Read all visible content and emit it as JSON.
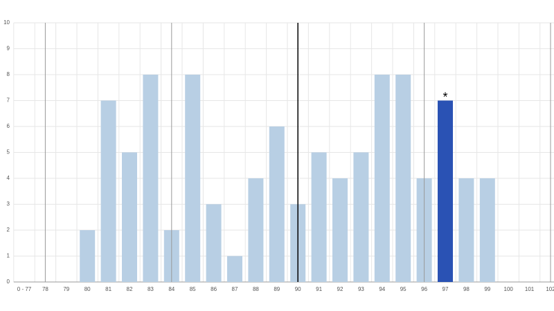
{
  "chart_data": {
    "type": "bar",
    "categories": [
      "0 - 77",
      "78",
      "79",
      "80",
      "81",
      "82",
      "83",
      "84",
      "85",
      "86",
      "87",
      "88",
      "89",
      "90",
      "91",
      "92",
      "93",
      "94",
      "95",
      "96",
      "97",
      "98",
      "99",
      "100",
      "101",
      "102"
    ],
    "values": [
      0,
      0,
      0,
      2,
      7,
      5,
      8,
      2,
      8,
      3,
      1,
      4,
      6,
      3,
      5,
      4,
      5,
      8,
      8,
      4,
      7,
      4,
      4,
      0,
      0,
      0
    ],
    "color": "#b8cfe4",
    "ylim": [
      0,
      10
    ],
    "yticks": [
      0,
      1,
      2,
      3,
      4,
      5,
      6,
      7,
      8,
      9,
      10
    ],
    "grid": true,
    "highlight": {
      "category": "97",
      "color": "#2a52b4",
      "annotation": "*"
    },
    "reference_lines": [
      {
        "category": "78",
        "color": "#999999"
      },
      {
        "category": "84",
        "color": "#999999"
      },
      {
        "category": "90",
        "color": "#000000"
      },
      {
        "category": "96",
        "color": "#999999"
      },
      {
        "category": "102",
        "color": "#999999"
      }
    ]
  }
}
